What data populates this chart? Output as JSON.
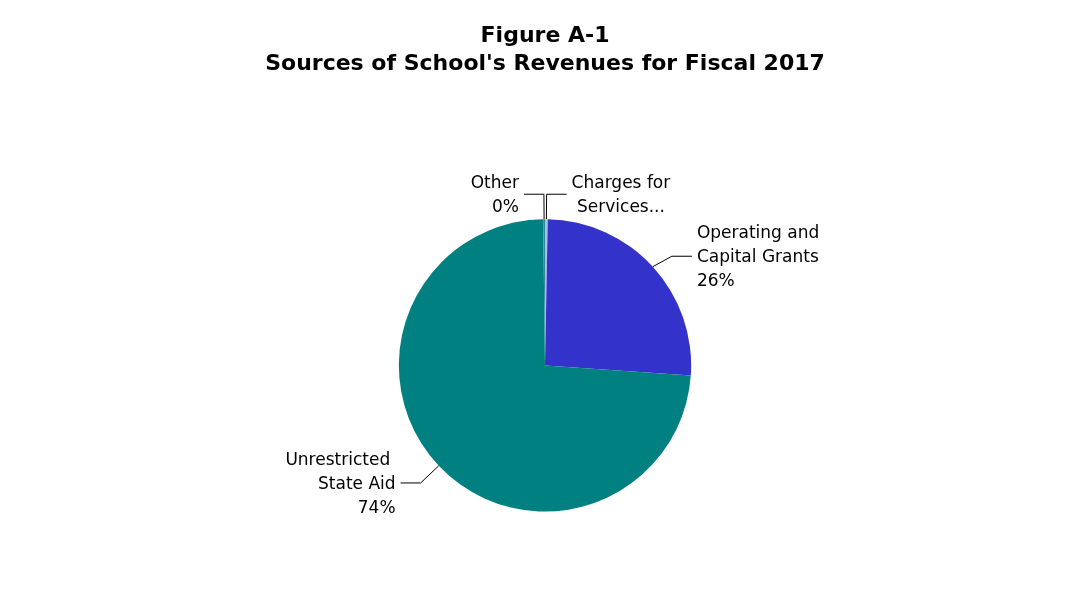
{
  "chart_data": {
    "type": "pie",
    "title": "Figure A-1",
    "subtitle": "Sources of School's Revenues for Fiscal 2017",
    "categories": [
      "Charges for Services...",
      "Operating and Capital Grants",
      "Unrestricted State Aid",
      "Other"
    ],
    "values": [
      0.3,
      25.8,
      73.7,
      0.2
    ],
    "value_labels": [
      null,
      "26%",
      "74%",
      "0%"
    ],
    "colors": [
      "#9dc3e6",
      "#3333cc",
      "#008080",
      "#31859c"
    ],
    "legend": false
  }
}
